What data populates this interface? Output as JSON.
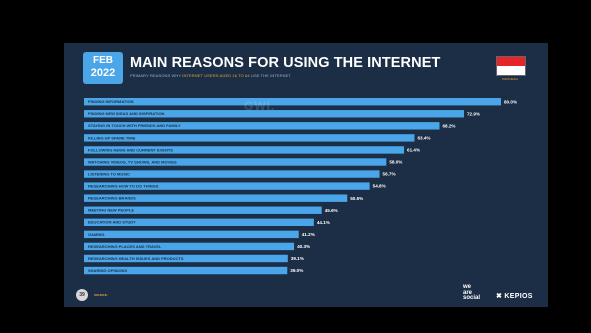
{
  "header": {
    "month": "FEB",
    "year": "2022",
    "title": "MAIN REASONS FOR USING THE INTERNET",
    "subtitle_pre": "PRIMARY REASONS WHY",
    "subtitle_highlight": "INTERNET USERS AGED 16 TO 64",
    "subtitle_post": "USE THE INTERNET",
    "country": "INDONESIA",
    "watermark": "GWI."
  },
  "footer": {
    "page_number": "39",
    "source_label": "SOURCE:"
  },
  "logos": {
    "we_line1": "we",
    "we_line2": "are",
    "we_line3": "social",
    "kepios": "KEPIOS"
  },
  "colors": {
    "background": "#1c2e46",
    "bar": "#4aa6e8",
    "label_text": "#1c2e46",
    "value_text": "#ffffff",
    "accent": "#e5a73b",
    "flag_red": "#e4262b",
    "flag_white": "#ffffff"
  },
  "chart_data": {
    "type": "bar",
    "orientation": "horizontal",
    "categories": [
      "FINDING INFORMATION",
      "FINDING NEW IDEAS AND INSPIRATION",
      "STAYING IN TOUCH WITH FRIENDS AND FAMILY",
      "FILLING UP SPARE TIME",
      "FOLLOWING NEWS AND CURRENT EVENTS",
      "WATCHING VIDEOS, TV SHOWS, AND MOVIES",
      "LISTENING TO MUSIC",
      "RESEARCHING HOW TO DO THINGS",
      "RESEARCHING BRANDS",
      "MEETING NEW PEOPLE",
      "EDUCATION AND STUDY",
      "GAMING",
      "RESEARCHING PLACES AND TRAVEL",
      "RESEARCHING HEALTH ISSUES AND PRODUCTS",
      "SHARING OPINIONS"
    ],
    "values": [
      80.0,
      72.9,
      68.2,
      63.4,
      61.4,
      58.0,
      56.7,
      54.8,
      50.5,
      45.6,
      44.1,
      41.2,
      40.3,
      39.1,
      39.0
    ],
    "value_labels": [
      "80.0%",
      "72.9%",
      "68.2%",
      "63.4%",
      "61.4%",
      "58.0%",
      "56.7%",
      "54.8%",
      "50.5%",
      "45.6%",
      "44.1%",
      "41.2%",
      "40.3%",
      "39.1%",
      "39.0%"
    ],
    "xlim": [
      0,
      80
    ]
  }
}
